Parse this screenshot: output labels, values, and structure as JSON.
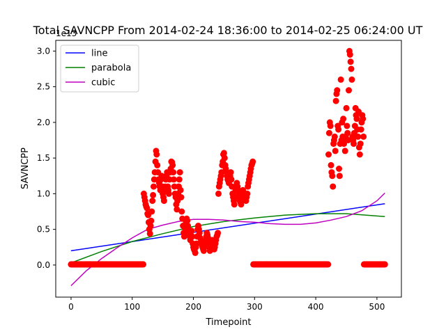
{
  "chart_data": {
    "type": "scatter",
    "title": "Total SAVNCPP From 2014-02-24 18:36:00 to 2014-02-25 06:24:00 UT",
    "xlabel": "Timepoint",
    "ylabel": "SAVNCPP",
    "y_offset_text": "1e13",
    "xlim": [
      -25,
      540
    ],
    "ylim": [
      -0.45,
      3.15
    ],
    "x_ticks": [
      0,
      100,
      200,
      300,
      400,
      500
    ],
    "x_tick_labels": [
      "0",
      "100",
      "200",
      "300",
      "400",
      "500"
    ],
    "y_ticks": [
      0.0,
      0.5,
      1.0,
      1.5,
      2.0,
      2.5,
      3.0
    ],
    "y_tick_labels": [
      "0.0",
      "0.5",
      "1.0",
      "1.5",
      "2.0",
      "2.5",
      "3.0"
    ],
    "grid": false,
    "legend_position": "top-left",
    "scatter": {
      "color": "#ff0000",
      "segments": [
        {
          "x_start": 0,
          "x_end": 118,
          "kind": "zero",
          "y": 0.01
        },
        {
          "x_start": 119,
          "x_end": 136,
          "kind": "points",
          "x": [
            119,
            120,
            121,
            122,
            123,
            124,
            125,
            126,
            127,
            128,
            129,
            130,
            131,
            132,
            133,
            134,
            135,
            136
          ],
          "y": [
            1.0,
            0.95,
            0.9,
            0.85,
            0.82,
            0.8,
            0.72,
            0.7,
            0.6,
            0.5,
            0.44,
            0.55,
            0.62,
            0.75,
            0.9,
            0.98,
            1.1,
            1.2
          ]
        },
        {
          "x_start": 137,
          "x_end": 184,
          "kind": "points",
          "x": [
            137,
            138,
            139,
            140,
            141,
            142,
            143,
            144,
            145,
            146,
            147,
            148,
            149,
            150,
            151,
            152,
            153,
            154,
            155,
            156,
            157,
            158,
            159,
            160,
            161,
            162,
            163,
            164,
            165,
            166,
            167,
            168,
            169,
            170,
            171,
            172,
            173,
            174,
            175,
            176,
            177,
            178,
            179,
            180,
            181,
            182,
            183,
            184
          ],
          "y": [
            1.3,
            1.45,
            1.6,
            1.55,
            1.4,
            1.3,
            1.2,
            1.15,
            1.1,
            1.05,
            1.2,
            1.25,
            1.1,
            1.0,
            0.95,
            0.9,
            1.05,
            1.1,
            1.2,
            1.25,
            1.3,
            1.1,
            1.05,
            1.0,
            1.2,
            1.3,
            1.35,
            1.45,
            1.44,
            1.4,
            1.3,
            1.2,
            1.1,
            1.0,
            0.95,
            0.85,
            0.78,
            0.9,
            1.0,
            1.1,
            1.2,
            1.3,
            1.05,
            0.95,
            0.75,
            0.65,
            0.55,
            0.45
          ]
        },
        {
          "x_start": 185,
          "x_end": 240,
          "kind": "points",
          "x": [
            185,
            186,
            187,
            188,
            189,
            190,
            191,
            192,
            193,
            194,
            195,
            196,
            197,
            198,
            199,
            200,
            201,
            202,
            203,
            204,
            205,
            206,
            207,
            208,
            209,
            210,
            211,
            212,
            213,
            214,
            215,
            216,
            217,
            218,
            219,
            220,
            221,
            222,
            223,
            224,
            225,
            226,
            227,
            228,
            229,
            230,
            231,
            232,
            233,
            234,
            235,
            236,
            237,
            238,
            239,
            240
          ],
          "y": [
            0.4,
            0.42,
            0.5,
            0.6,
            0.65,
            0.62,
            0.55,
            0.5,
            0.45,
            0.4,
            0.35,
            0.42,
            0.48,
            0.4,
            0.3,
            0.25,
            0.22,
            0.2,
            0.17,
            0.25,
            0.3,
            0.4,
            0.5,
            0.55,
            0.5,
            0.45,
            0.38,
            0.32,
            0.3,
            0.28,
            0.25,
            0.22,
            0.2,
            0.25,
            0.3,
            0.35,
            0.4,
            0.45,
            0.42,
            0.38,
            0.3,
            0.25,
            0.2,
            0.22,
            0.28,
            0.3,
            0.35,
            0.3,
            0.25,
            0.22,
            0.25,
            0.3,
            0.35,
            0.4,
            0.42,
            0.45
          ]
        },
        {
          "x_start": 241,
          "x_end": 297,
          "kind": "points",
          "x": [
            241,
            242,
            243,
            244,
            245,
            246,
            247,
            248,
            249,
            250,
            251,
            252,
            253,
            254,
            255,
            256,
            257,
            258,
            259,
            260,
            261,
            262,
            263,
            264,
            265,
            266,
            267,
            268,
            269,
            270,
            271,
            272,
            273,
            274,
            275,
            276,
            277,
            278,
            279,
            280,
            281,
            282,
            283,
            284,
            285,
            286,
            287,
            288,
            289,
            290,
            291,
            292,
            293,
            294,
            295,
            296,
            297
          ],
          "y": [
            1.0,
            1.1,
            1.15,
            1.2,
            1.25,
            1.3,
            1.4,
            1.45,
            1.55,
            1.57,
            1.5,
            1.4,
            1.35,
            1.3,
            1.25,
            1.2,
            1.18,
            1.15,
            1.2,
            1.25,
            1.3,
            1.2,
            1.1,
            1.0,
            0.95,
            0.9,
            0.85,
            0.95,
            1.05,
            1.1,
            1.15,
            1.1,
            1.05,
            1.0,
            0.95,
            0.9,
            0.88,
            0.85,
            0.9,
            1.0,
            1.05,
            1.0,
            0.98,
            0.95,
            0.92,
            0.9,
            0.95,
            1.0,
            1.1,
            1.15,
            1.2,
            1.25,
            1.3,
            1.35,
            1.4,
            1.42,
            1.45
          ]
        },
        {
          "x_start": 298,
          "x_end": 420,
          "kind": "zero",
          "y": 0.01
        },
        {
          "x_start": 421,
          "x_end": 478,
          "kind": "points",
          "x": [
            421,
            422,
            423,
            424,
            425,
            426,
            427,
            428,
            429,
            430,
            431,
            432,
            433,
            434,
            435,
            436,
            437,
            438,
            439,
            440,
            441,
            442,
            443,
            444,
            445,
            446,
            447,
            448,
            449,
            450,
            451,
            452,
            453,
            454,
            455,
            456,
            457,
            458,
            459,
            460,
            461,
            462,
            463,
            464,
            465,
            466,
            467,
            468,
            469,
            470,
            471,
            472,
            473,
            474,
            475,
            476,
            477,
            478
          ],
          "y": [
            1.55,
            1.85,
            2.0,
            1.95,
            1.4,
            1.3,
            1.25,
            1.1,
            1.7,
            1.75,
            1.8,
            1.6,
            2.3,
            2.4,
            2.45,
            1.95,
            1.9,
            1.35,
            1.25,
            1.7,
            2.6,
            1.75,
            2.0,
            1.8,
            2.05,
            1.7,
            1.75,
            1.6,
            1.8,
            2.2,
            1.95,
            1.85,
            1.75,
            2.45,
            3.0,
            2.95,
            2.85,
            2.75,
            2.6,
            1.8,
            1.75,
            1.7,
            1.85,
            1.95,
            2.2,
            2.1,
            2.05,
            1.9,
            1.8,
            2.15,
            1.65,
            1.55,
            1.7,
            1.9,
            2.0,
            2.1,
            2.05,
            1.8
          ]
        },
        {
          "x_start": 479,
          "x_end": 513,
          "kind": "zero",
          "y": 0.01
        }
      ]
    },
    "series": [
      {
        "name": "line",
        "type": "line",
        "color": "#0000ff",
        "x": [
          0,
          513
        ],
        "y": [
          0.2,
          0.86
        ]
      },
      {
        "name": "parabola",
        "type": "line",
        "color": "#008000",
        "x": [
          0,
          50,
          100,
          150,
          200,
          250,
          300,
          350,
          400,
          450,
          513
        ],
        "y": [
          0.03,
          0.19,
          0.33,
          0.44,
          0.54,
          0.61,
          0.66,
          0.7,
          0.72,
          0.72,
          0.68
        ]
      },
      {
        "name": "cubic",
        "type": "line",
        "color": "#bf00bf",
        "x": [
          0,
          25,
          50,
          75,
          100,
          125,
          150,
          175,
          200,
          225,
          250,
          275,
          300,
          325,
          350,
          375,
          400,
          425,
          450,
          475,
          500,
          513
        ],
        "y": [
          -0.29,
          -0.08,
          0.09,
          0.24,
          0.38,
          0.5,
          0.56,
          0.61,
          0.64,
          0.64,
          0.63,
          0.61,
          0.6,
          0.58,
          0.57,
          0.57,
          0.59,
          0.63,
          0.68,
          0.76,
          0.9,
          1.01
        ]
      }
    ],
    "legend": [
      "line",
      "parabola",
      "cubic"
    ]
  }
}
